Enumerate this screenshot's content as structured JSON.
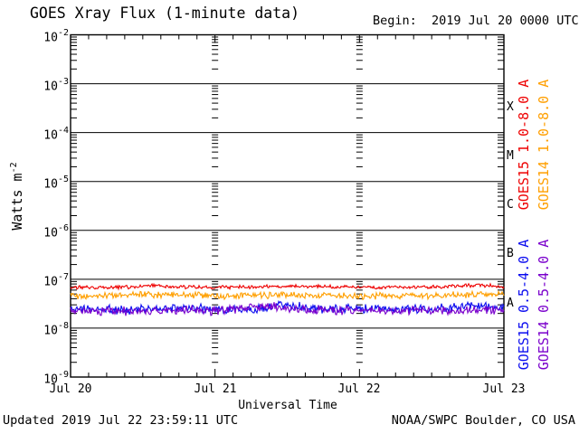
{
  "title": "GOES Xray Flux (1-minute data)",
  "begin_label": "Begin:  2019 Jul 20 0000 UTC",
  "footer": {
    "updated": "Updated 2019 Jul 22 23:59:11 UTC",
    "source": "NOAA/SWPC Boulder, CO USA"
  },
  "legend": [
    {
      "label": "GOES15 1.0-8.0 A",
      "color": "#ee0000"
    },
    {
      "label": "GOES14 1.0-8.0 A",
      "color": "#ff9f00"
    },
    {
      "label": "GOES15 0.5-4.0 A",
      "color": "#0b0bef"
    },
    {
      "label": "GOES14 0.5-4.0 A",
      "color": "#7a00cc"
    }
  ],
  "chart_data": {
    "type": "line",
    "title": "GOES Xray Flux (1-minute data)",
    "xlabel": "Universal Time",
    "ylabel_base": "Watts m",
    "ylabel_exp": "-2",
    "x_axis": {
      "start": "2019 Jul 20 0000 UTC",
      "span_days": 3,
      "minor_tick_hours": 3
    },
    "x_ticks": [
      "Jul 20",
      "Jul 21",
      "Jul 22",
      "Jul 23"
    ],
    "y_scale": "log",
    "ylim": [
      1e-09,
      0.01
    ],
    "y_base": "10",
    "y_sups": [
      "-2",
      "-3",
      "-4",
      "-5",
      "-6",
      "-7",
      "-8",
      "-9"
    ],
    "flare_classes": [
      "X",
      "M",
      "C",
      "B",
      "A"
    ],
    "grid": "solid horizontal line each decade; log-tick dash columns at interior day boundaries",
    "series": [
      {
        "name": "GOES14 1.0-8.0 A",
        "color": "#ff9f00",
        "seed": 202,
        "noise_log_sigma": 0.038,
        "keyframes_days_flux": [
          [
            0,
            4.6e-08
          ],
          [
            0.5,
            4.9e-08
          ],
          [
            1.0,
            4.6e-08
          ],
          [
            1.5,
            4.8e-08
          ],
          [
            2.0,
            4.6e-08
          ],
          [
            2.5,
            4.7e-08
          ],
          [
            3,
            4.8e-08
          ]
        ]
      },
      {
        "name": "GOES15 1.0-8.0 A",
        "color": "#ee0000",
        "seed": 101,
        "noise_log_sigma": 0.02,
        "keyframes_days_flux": [
          [
            0,
            6.8e-08
          ],
          [
            0.45,
            7e-08
          ],
          [
            0.58,
            7.7e-08
          ],
          [
            0.7,
            7e-08
          ],
          [
            1.0,
            6.8e-08
          ],
          [
            1.5,
            7.2e-08
          ],
          [
            2.0,
            6.9e-08
          ],
          [
            2.5,
            7e-08
          ],
          [
            2.85,
            7.6e-08
          ],
          [
            3,
            7e-08
          ]
        ]
      },
      {
        "name": "GOES15 0.5-4.0 A",
        "color": "#0b0bef",
        "seed": 303,
        "noise_log_sigma": 0.048,
        "keyframes_days_flux": [
          [
            0,
            2.5e-08
          ],
          [
            0.3,
            2.4e-08
          ],
          [
            0.8,
            2.5e-08
          ],
          [
            1.2,
            2.4e-08
          ],
          [
            1.36,
            2.5e-08
          ],
          [
            1.44,
            3.2e-08
          ],
          [
            1.52,
            2.9e-08
          ],
          [
            1.7,
            2.5e-08
          ],
          [
            2.2,
            2.5e-08
          ],
          [
            2.6,
            2.5e-08
          ],
          [
            2.76,
            3e-08
          ],
          [
            2.86,
            2.8e-08
          ],
          [
            3,
            2.5e-08
          ]
        ]
      },
      {
        "name": "GOES14 0.5-4.0 A",
        "color": "#7a00cc",
        "seed": 404,
        "noise_log_sigma": 0.05,
        "keyframes_days_flux": [
          [
            0,
            2.3e-08
          ],
          [
            0.5,
            2.2e-08
          ],
          [
            1.0,
            2.3e-08
          ],
          [
            1.44,
            2.8e-08
          ],
          [
            1.6,
            2.4e-08
          ],
          [
            2.0,
            2.3e-08
          ],
          [
            2.5,
            2.3e-08
          ],
          [
            3,
            2.4e-08
          ]
        ]
      }
    ]
  }
}
